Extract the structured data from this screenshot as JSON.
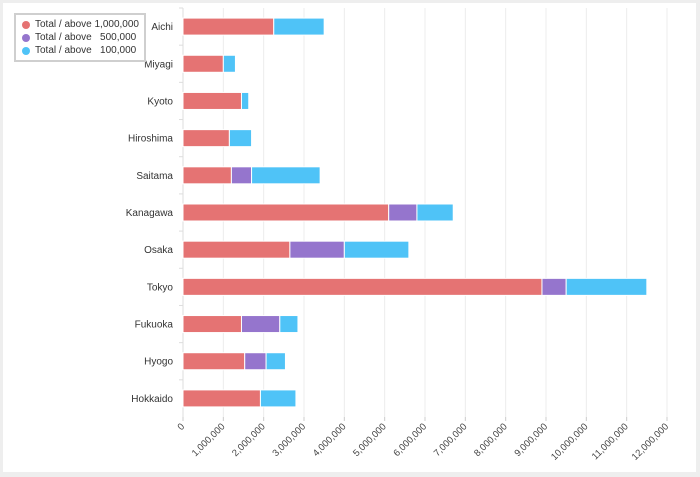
{
  "chart_data": {
    "type": "bar",
    "orientation": "horizontal",
    "stacked": true,
    "categories": [
      "Aichi",
      "Miyagi",
      "Kyoto",
      "Hiroshima",
      "Saitama",
      "Kanagawa",
      "Osaka",
      "Tokyo",
      "Fukuoka",
      "Hyogo",
      "Hokkaido"
    ],
    "series": [
      {
        "name": "Total / above 1,000,000",
        "color": "#e57373",
        "values": [
          2250000,
          1000000,
          1450000,
          1150000,
          1200000,
          5100000,
          2650000,
          8900000,
          1450000,
          1530000,
          1920000
        ]
      },
      {
        "name": "Total / above   500,000",
        "color": "#9575cd",
        "values": [
          0,
          0,
          0,
          0,
          500000,
          700000,
          1350000,
          600000,
          950000,
          530000,
          0
        ]
      },
      {
        "name": "Total / above   100,000",
        "color": "#4fc3f7",
        "values": [
          1250000,
          300000,
          180000,
          550000,
          1700000,
          900000,
          1600000,
          2000000,
          450000,
          480000,
          880000
        ]
      }
    ],
    "xlim": [
      0,
      12000000
    ],
    "x_ticks": [
      "0",
      "1,000,000",
      "2,000,000",
      "3,000,000",
      "4,000,000",
      "5,000,000",
      "6,000,000",
      "7,000,000",
      "8,000,000",
      "9,000,000",
      "10,000,000",
      "11,000,000",
      "12,000,000"
    ],
    "grid": "vertical",
    "legend_position": "top-left"
  }
}
